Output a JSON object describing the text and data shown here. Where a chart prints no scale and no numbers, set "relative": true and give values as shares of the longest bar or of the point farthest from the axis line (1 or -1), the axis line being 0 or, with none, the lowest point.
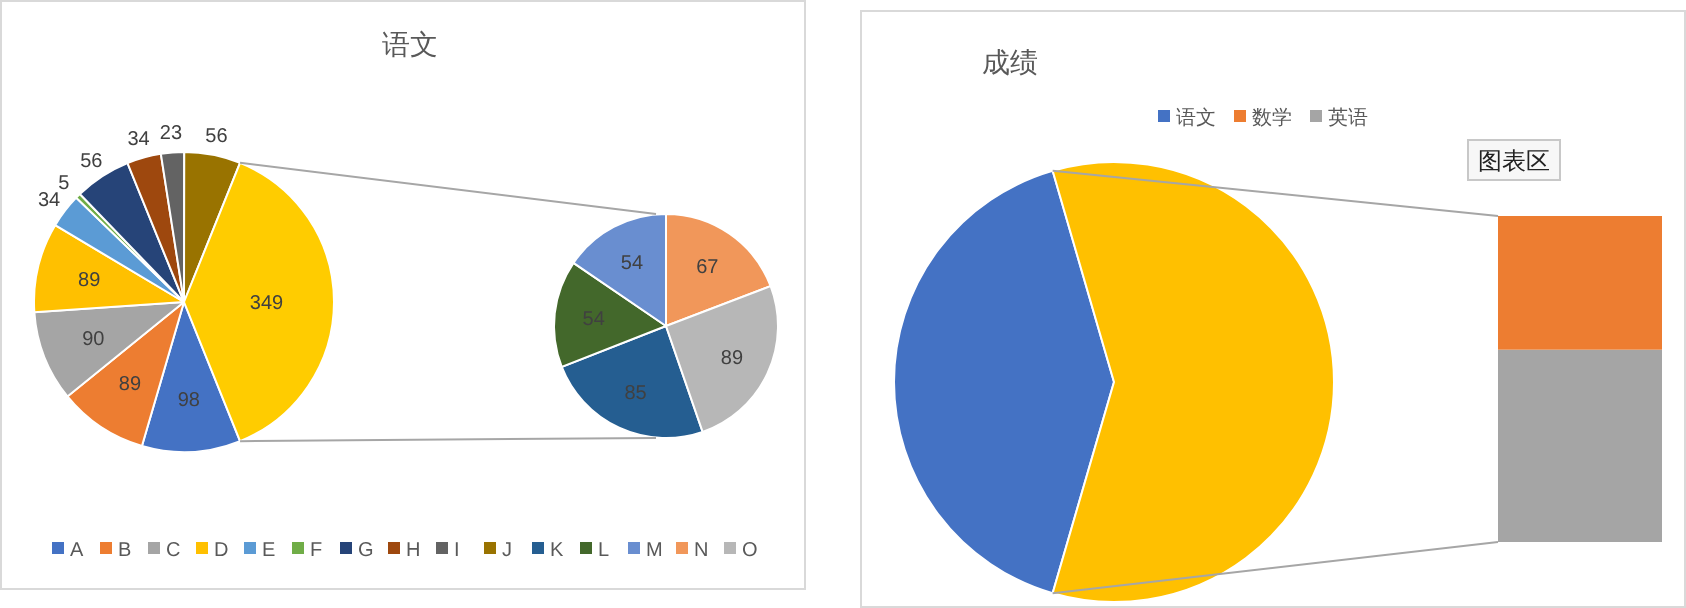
{
  "chart_data": [
    {
      "type": "pie",
      "title": "语文",
      "categories": [
        "A",
        "B",
        "C",
        "D",
        "E",
        "F",
        "G",
        "H",
        "I",
        "J",
        null
      ],
      "values": [
        98,
        89,
        90,
        89,
        34,
        5,
        56,
        34,
        23,
        56,
        349
      ],
      "colors": [
        "#4472c4",
        "#ed7d31",
        "#a5a5a5",
        "#ffc000",
        "#5b9bd5",
        "#70ad47",
        "#264478",
        "#9e480e",
        "#636363",
        "#997300",
        "#ffcc00"
      ],
      "data_labels": true,
      "legend": "bottom"
    },
    {
      "type": "pie",
      "categories": [
        "K",
        "L",
        "M",
        "N",
        "O"
      ],
      "values": [
        85,
        54,
        54,
        67,
        89
      ],
      "colors": [
        "#255e91",
        "#43682b",
        "#698ed0",
        "#f1975a",
        "#b7b7b7"
      ],
      "data_labels": true,
      "legend": "bottom"
    },
    {
      "type": "pie",
      "title": "成绩",
      "categories": [
        "语文",
        null
      ],
      "values": [
        41,
        59
      ],
      "colors": [
        "#4472c4",
        "#ffc000"
      ],
      "legend": "top",
      "annotations": [
        "图表区"
      ]
    },
    {
      "type": "bar",
      "categories": [
        null
      ],
      "stacked": true,
      "relative": true,
      "legend": "top",
      "series": [
        {
          "name": "英语",
          "color": "#a5a5a5",
          "values": [
            0.59
          ]
        },
        {
          "name": "数学",
          "color": "#ed7d31",
          "values": [
            0.41
          ]
        }
      ]
    }
  ]
}
